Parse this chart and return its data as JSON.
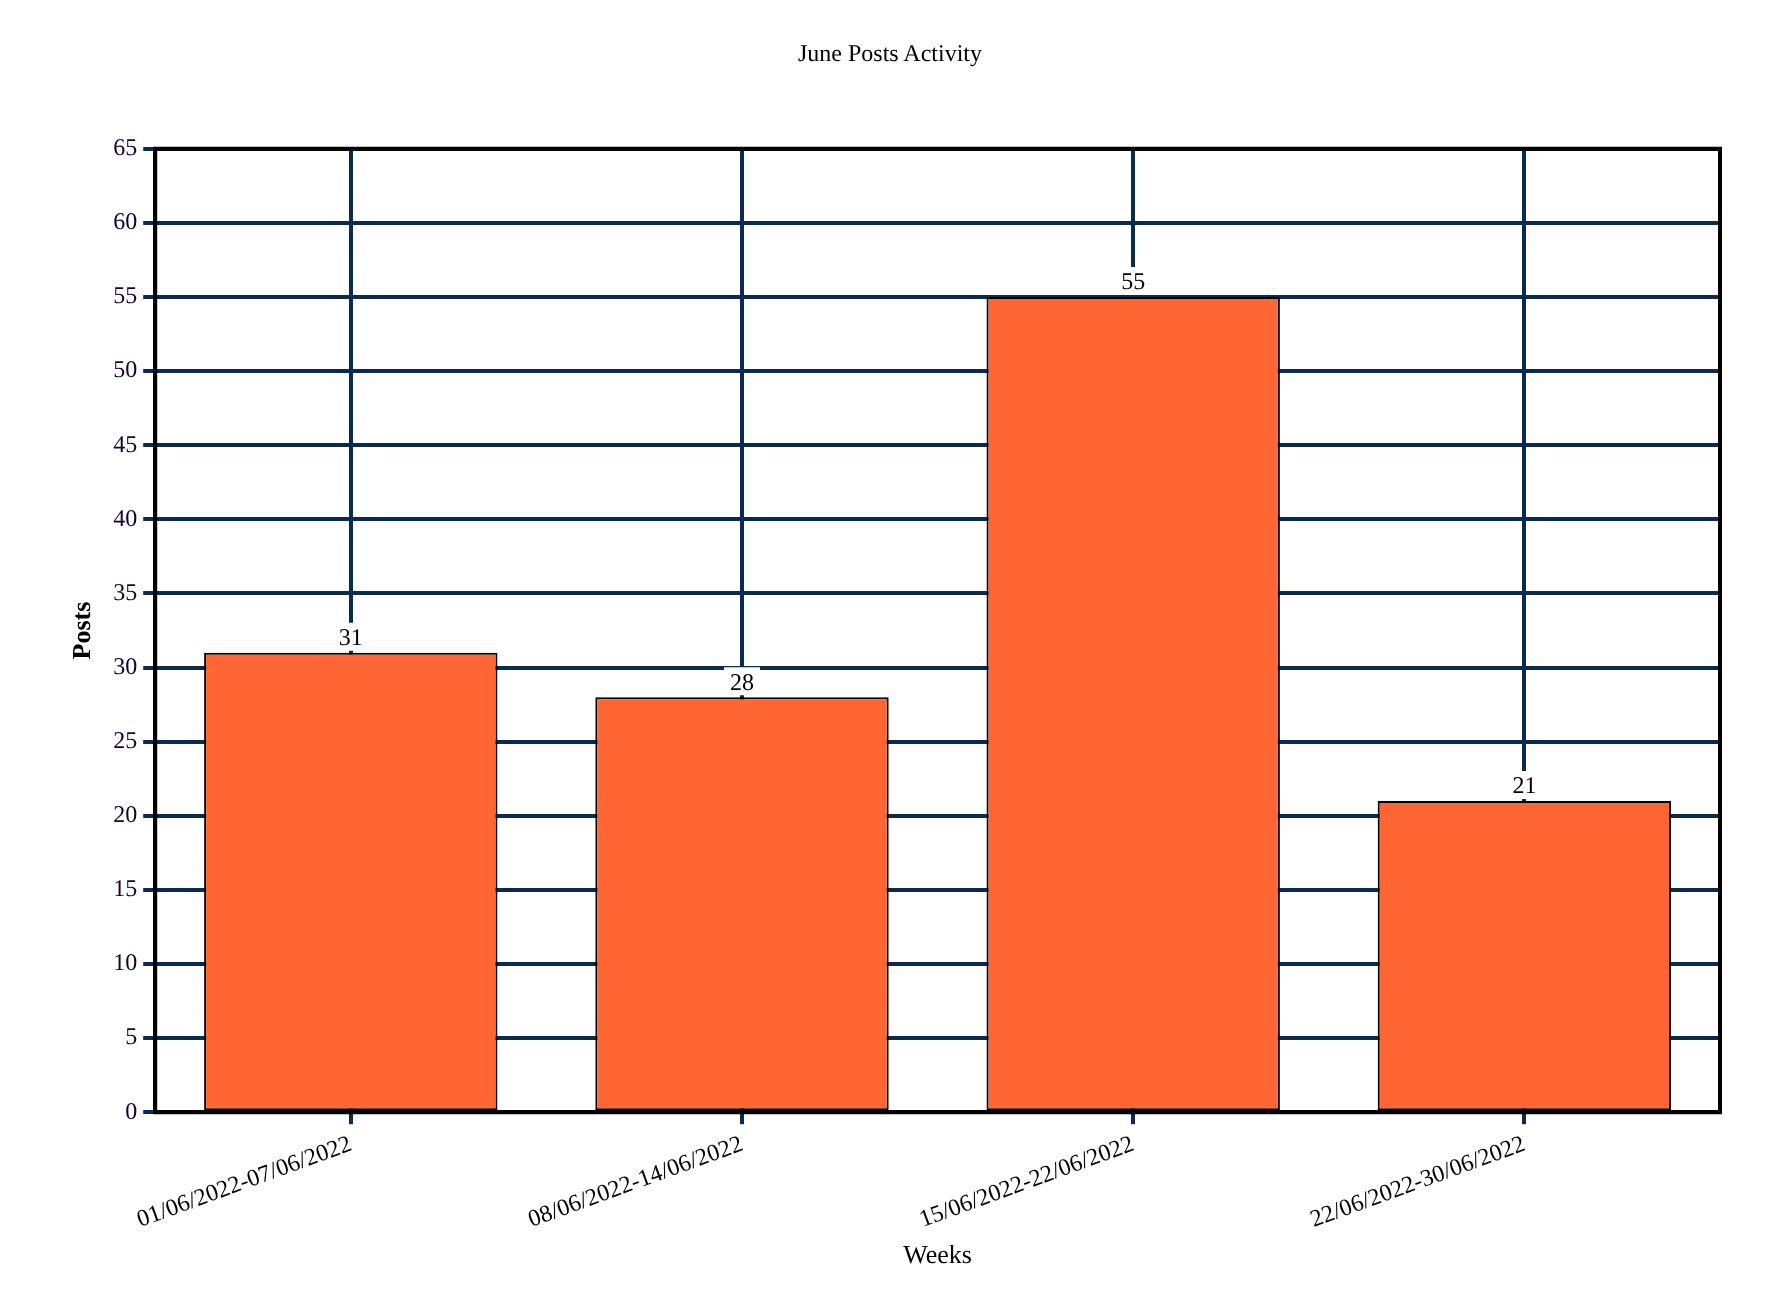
{
  "chart_data": {
    "type": "bar",
    "title": "June Posts Activity",
    "xlabel": "Weeks",
    "ylabel": "Posts",
    "categories": [
      "01/06/2022-07/06/2022",
      "08/06/2022-14/06/2022",
      "15/06/2022-22/06/2022",
      "22/06/2022-30/06/2022"
    ],
    "values": [
      31,
      28,
      55,
      21
    ],
    "color": "#ff6633",
    "ylim": [
      0,
      65
    ],
    "yticks": [
      0,
      5,
      10,
      15,
      20,
      25,
      30,
      35,
      40,
      45,
      50,
      55,
      60,
      65
    ],
    "grid": true,
    "data_labels": true,
    "legend": false
  }
}
